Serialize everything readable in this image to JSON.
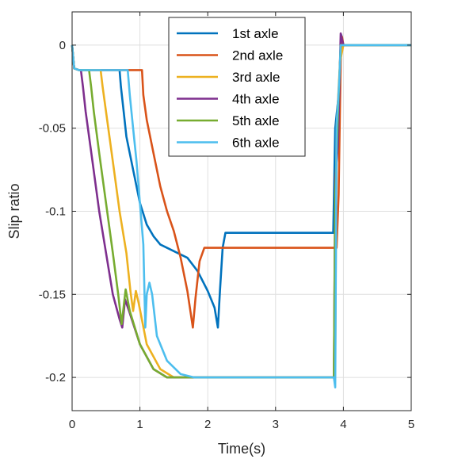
{
  "chart_data": {
    "type": "line",
    "xlabel": "Time(s)",
    "ylabel": "Slip ratio",
    "xlim": [
      0,
      5
    ],
    "ylim": [
      -0.22,
      0.02
    ],
    "x_ticks": [
      0,
      1,
      2,
      3,
      4,
      5
    ],
    "x_tick_labels": [
      "0",
      "1",
      "2",
      "3",
      "4",
      "5"
    ],
    "y_ticks": [
      0,
      -0.05,
      -0.1,
      -0.15,
      -0.2
    ],
    "y_tick_labels": [
      "0",
      "-0.05",
      "-0.1",
      "-0.15",
      "-0.2"
    ],
    "grid": true,
    "legend_position": "top-center",
    "series": [
      {
        "name": "1st axle",
        "color": "#0072BD",
        "points": [
          [
            0,
            0
          ],
          [
            0.03,
            -0.014
          ],
          [
            0.1,
            -0.015
          ],
          [
            0.6,
            -0.015
          ],
          [
            0.7,
            -0.015
          ],
          [
            0.72,
            -0.025
          ],
          [
            0.76,
            -0.04
          ],
          [
            0.8,
            -0.055
          ],
          [
            0.9,
            -0.075
          ],
          [
            1.0,
            -0.095
          ],
          [
            1.1,
            -0.108
          ],
          [
            1.2,
            -0.115
          ],
          [
            1.3,
            -0.12
          ],
          [
            1.5,
            -0.124
          ],
          [
            1.7,
            -0.128
          ],
          [
            1.85,
            -0.136
          ],
          [
            2.0,
            -0.148
          ],
          [
            2.1,
            -0.158
          ],
          [
            2.15,
            -0.17
          ],
          [
            2.18,
            -0.148
          ],
          [
            2.22,
            -0.122
          ],
          [
            2.26,
            -0.113
          ],
          [
            2.4,
            -0.113
          ],
          [
            3.0,
            -0.113
          ],
          [
            3.5,
            -0.113
          ],
          [
            3.85,
            -0.113
          ],
          [
            3.88,
            -0.05
          ],
          [
            3.93,
            -0.03
          ],
          [
            3.97,
            0.006
          ],
          [
            4.0,
            0
          ],
          [
            5.0,
            0
          ]
        ]
      },
      {
        "name": "2nd axle",
        "color": "#D95319",
        "points": [
          [
            0,
            0
          ],
          [
            0.03,
            -0.014
          ],
          [
            0.1,
            -0.015
          ],
          [
            1.0,
            -0.015
          ],
          [
            1.03,
            -0.015
          ],
          [
            1.05,
            -0.03
          ],
          [
            1.1,
            -0.045
          ],
          [
            1.2,
            -0.065
          ],
          [
            1.3,
            -0.085
          ],
          [
            1.4,
            -0.1
          ],
          [
            1.5,
            -0.112
          ],
          [
            1.6,
            -0.128
          ],
          [
            1.7,
            -0.148
          ],
          [
            1.78,
            -0.17
          ],
          [
            1.82,
            -0.152
          ],
          [
            1.88,
            -0.13
          ],
          [
            1.95,
            -0.122
          ],
          [
            2.1,
            -0.122
          ],
          [
            3.0,
            -0.122
          ],
          [
            3.9,
            -0.122
          ],
          [
            3.93,
            -0.09
          ],
          [
            3.96,
            -0.01
          ],
          [
            3.98,
            0.005
          ],
          [
            4.0,
            0
          ],
          [
            5.0,
            0
          ]
        ]
      },
      {
        "name": "3rd axle",
        "color": "#EDB120",
        "points": [
          [
            0,
            0
          ],
          [
            0.03,
            -0.014
          ],
          [
            0.1,
            -0.015
          ],
          [
            0.4,
            -0.015
          ],
          [
            0.42,
            -0.015
          ],
          [
            0.45,
            -0.025
          ],
          [
            0.5,
            -0.04
          ],
          [
            0.6,
            -0.07
          ],
          [
            0.7,
            -0.1
          ],
          [
            0.8,
            -0.125
          ],
          [
            0.86,
            -0.148
          ],
          [
            0.9,
            -0.16
          ],
          [
            0.94,
            -0.148
          ],
          [
            0.98,
            -0.155
          ],
          [
            1.1,
            -0.18
          ],
          [
            1.3,
            -0.195
          ],
          [
            1.5,
            -0.2
          ],
          [
            2.0,
            -0.2
          ],
          [
            3.0,
            -0.2
          ],
          [
            3.86,
            -0.2
          ],
          [
            3.88,
            -0.19
          ],
          [
            3.9,
            -0.05
          ],
          [
            3.95,
            -0.01
          ],
          [
            4.0,
            0
          ],
          [
            5.0,
            0
          ]
        ]
      },
      {
        "name": "4th axle",
        "color": "#7E2F8E",
        "points": [
          [
            0,
            0
          ],
          [
            0.03,
            -0.014
          ],
          [
            0.1,
            -0.015
          ],
          [
            0.13,
            -0.015
          ],
          [
            0.16,
            -0.025
          ],
          [
            0.2,
            -0.04
          ],
          [
            0.3,
            -0.07
          ],
          [
            0.4,
            -0.1
          ],
          [
            0.5,
            -0.125
          ],
          [
            0.6,
            -0.15
          ],
          [
            0.7,
            -0.165
          ],
          [
            0.74,
            -0.17
          ],
          [
            0.78,
            -0.153
          ],
          [
            0.84,
            -0.16
          ],
          [
            1.0,
            -0.18
          ],
          [
            1.2,
            -0.195
          ],
          [
            1.4,
            -0.2
          ],
          [
            2.0,
            -0.2
          ],
          [
            3.0,
            -0.2
          ],
          [
            3.86,
            -0.2
          ],
          [
            3.88,
            -0.08
          ],
          [
            3.92,
            -0.06
          ],
          [
            3.96,
            0.007
          ],
          [
            4.0,
            0
          ],
          [
            5.0,
            0
          ]
        ]
      },
      {
        "name": "5th axle",
        "color": "#77AC30",
        "points": [
          [
            0,
            0
          ],
          [
            0.03,
            -0.014
          ],
          [
            0.1,
            -0.015
          ],
          [
            0.25,
            -0.015
          ],
          [
            0.28,
            -0.025
          ],
          [
            0.32,
            -0.04
          ],
          [
            0.4,
            -0.065
          ],
          [
            0.5,
            -0.095
          ],
          [
            0.6,
            -0.125
          ],
          [
            0.68,
            -0.15
          ],
          [
            0.73,
            -0.168
          ],
          [
            0.79,
            -0.147
          ],
          [
            0.85,
            -0.16
          ],
          [
            1.0,
            -0.18
          ],
          [
            1.2,
            -0.195
          ],
          [
            1.4,
            -0.2
          ],
          [
            2.0,
            -0.2
          ],
          [
            3.0,
            -0.2
          ],
          [
            3.86,
            -0.2
          ],
          [
            3.88,
            -0.09
          ],
          [
            3.92,
            -0.04
          ],
          [
            3.96,
            0
          ],
          [
            4.0,
            0
          ],
          [
            5.0,
            0
          ]
        ]
      },
      {
        "name": "6th axle",
        "color": "#4DBEEE",
        "points": [
          [
            0,
            0
          ],
          [
            0.03,
            -0.014
          ],
          [
            0.1,
            -0.015
          ],
          [
            0.8,
            -0.015
          ],
          [
            0.82,
            -0.015
          ],
          [
            0.85,
            -0.03
          ],
          [
            0.9,
            -0.05
          ],
          [
            0.95,
            -0.07
          ],
          [
            1.0,
            -0.095
          ],
          [
            1.05,
            -0.12
          ],
          [
            1.08,
            -0.17
          ],
          [
            1.1,
            -0.15
          ],
          [
            1.14,
            -0.143
          ],
          [
            1.18,
            -0.15
          ],
          [
            1.25,
            -0.175
          ],
          [
            1.4,
            -0.19
          ],
          [
            1.6,
            -0.198
          ],
          [
            1.8,
            -0.2
          ],
          [
            2.0,
            -0.2
          ],
          [
            3.0,
            -0.2
          ],
          [
            3.86,
            -0.2
          ],
          [
            3.88,
            -0.206
          ],
          [
            3.9,
            -0.05
          ],
          [
            3.94,
            -0.02
          ],
          [
            3.96,
            0
          ],
          [
            4.0,
            0
          ],
          [
            5.0,
            0
          ]
        ]
      }
    ]
  }
}
